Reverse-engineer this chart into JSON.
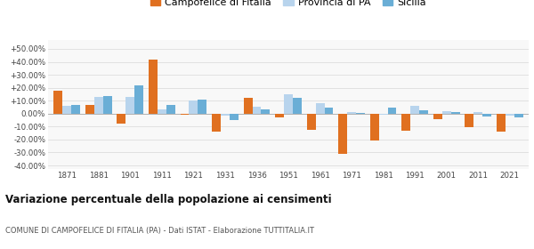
{
  "years": [
    1871,
    1881,
    1901,
    1911,
    1921,
    1931,
    1936,
    1951,
    1961,
    1971,
    1981,
    1991,
    2001,
    2011,
    2021
  ],
  "campofelice": [
    18.0,
    7.0,
    -8.0,
    42.0,
    -1.0,
    -14.0,
    12.0,
    -3.0,
    -12.5,
    -31.0,
    -21.0,
    -13.0,
    -4.0,
    -10.5,
    -14.0
  ],
  "provincia_pa": [
    6.0,
    13.0,
    13.0,
    3.5,
    10.0,
    -1.5,
    5.5,
    15.0,
    8.0,
    1.0,
    -0.5,
    6.0,
    2.0,
    1.5,
    -1.5
  ],
  "sicilia": [
    7.0,
    13.5,
    21.5,
    6.5,
    11.0,
    -5.0,
    3.0,
    12.5,
    5.0,
    0.5,
    5.0,
    2.5,
    1.5,
    -2.5,
    -3.0
  ],
  "color_campofelice": "#e07020",
  "color_provincia": "#b8d4ed",
  "color_sicilia": "#6aaed6",
  "title": "Variazione percentuale della popolazione ai censimenti",
  "subtitle": "COMUNE DI CAMPOFELICE DI FITALIA (PA) - Dati ISTAT - Elaborazione TUTTITALIA.IT",
  "legend_labels": [
    "Campofelice di Fitalia",
    "Provincia di PA",
    "Sicilia"
  ],
  "yticks": [
    -40,
    -30,
    -20,
    -10,
    0,
    10,
    20,
    30,
    40,
    50
  ],
  "ylim": [
    -43,
    57
  ],
  "background_color": "#ffffff",
  "plot_bg_color": "#f8f8f8",
  "grid_color": "#dddddd",
  "bar_width": 0.28
}
